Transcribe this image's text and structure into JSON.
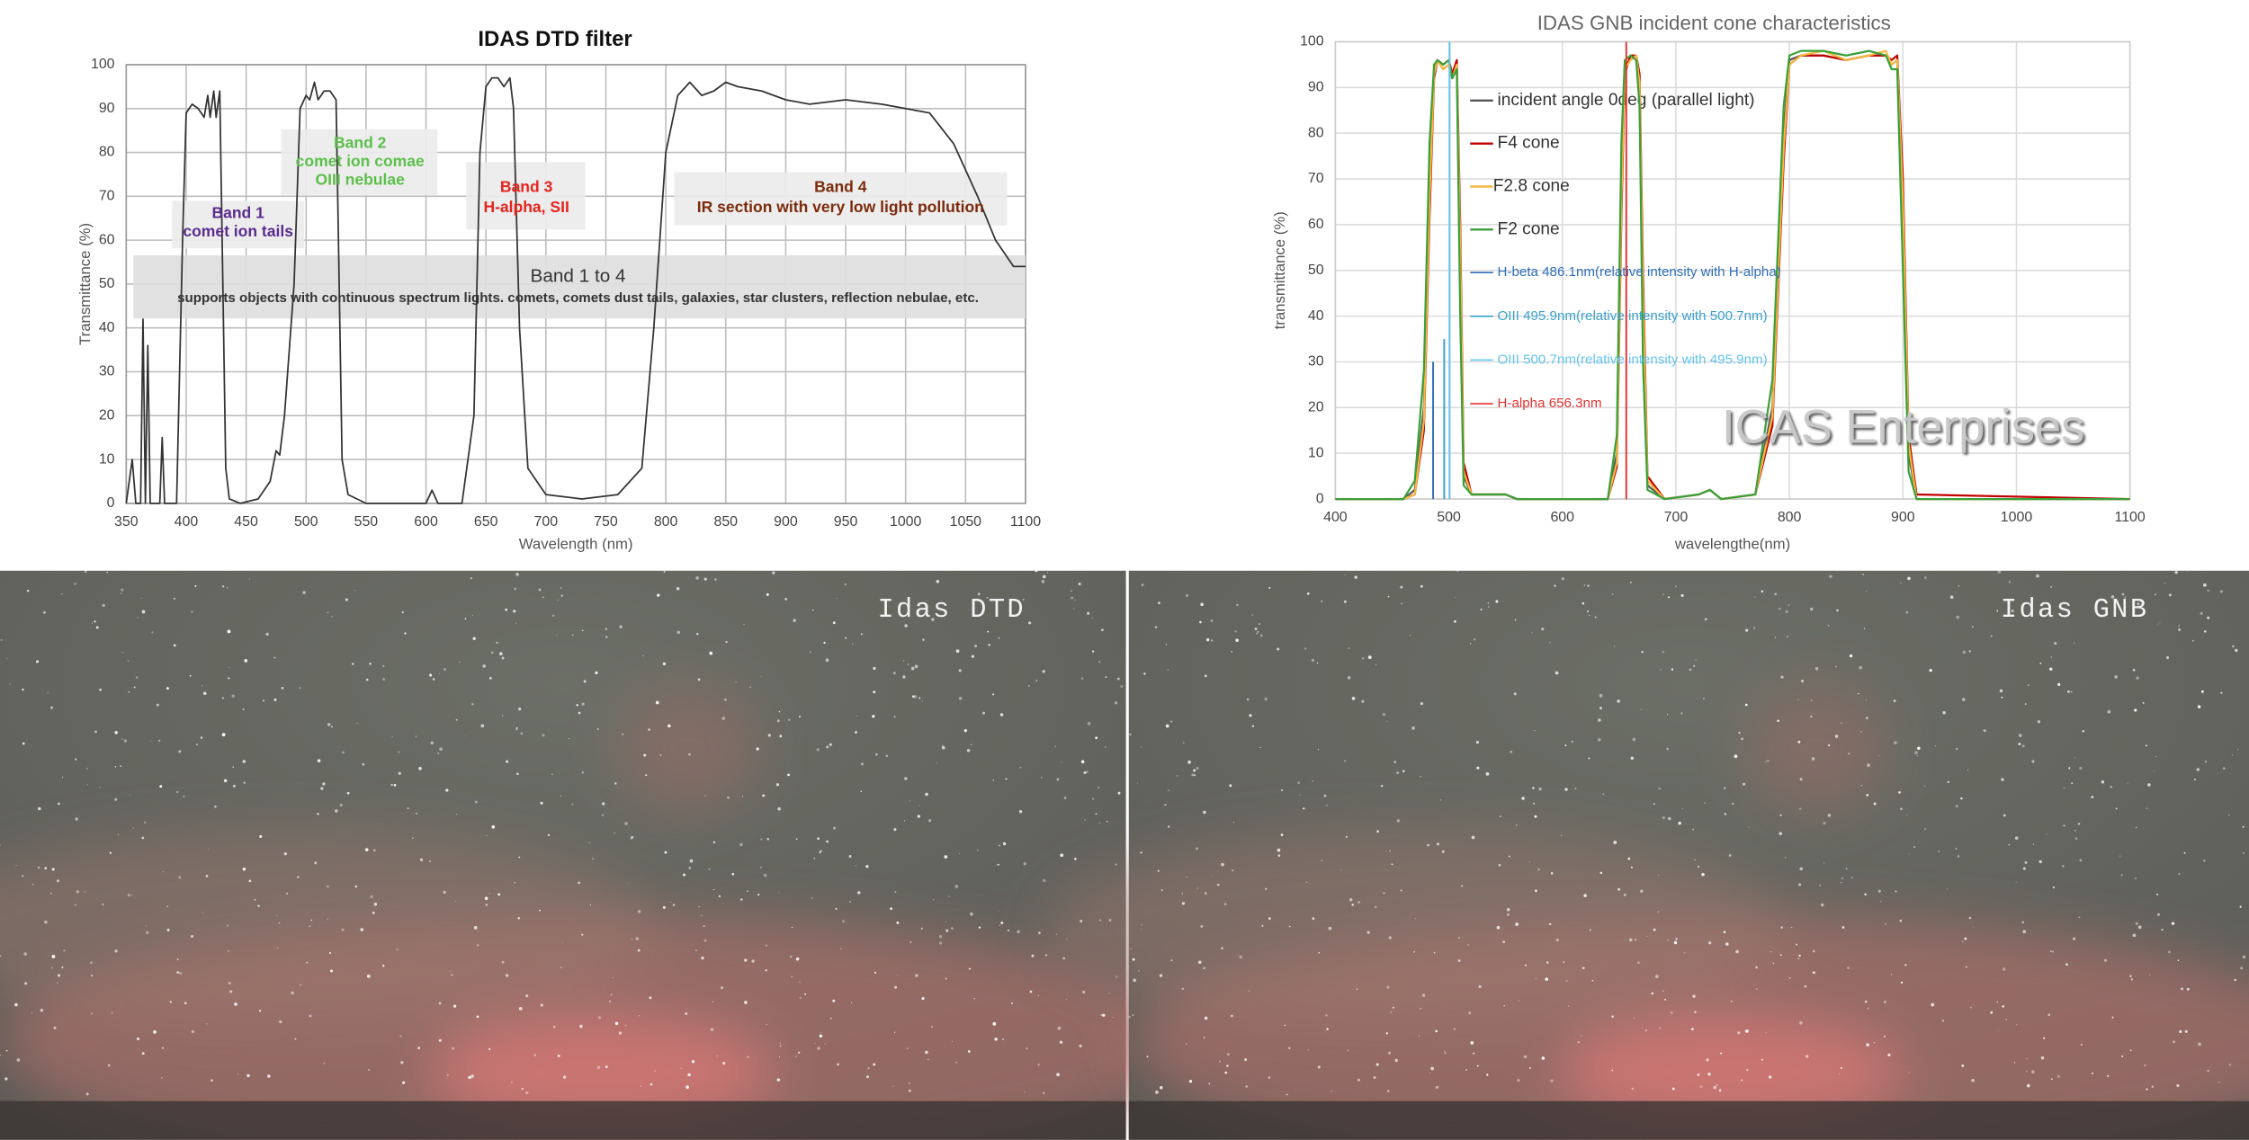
{
  "chart_data": [
    {
      "type": "line",
      "title": "IDAS DTD filter",
      "x_label": "Wavelength (nm)",
      "y_label": "Transmittance (%)",
      "x": [
        350,
        355,
        358,
        362,
        364,
        366,
        368,
        370,
        378,
        380,
        382,
        392,
        397,
        400,
        405,
        410,
        415,
        418,
        420,
        423,
        425,
        428,
        430,
        433,
        436,
        445,
        460,
        470,
        475,
        478,
        482,
        490,
        495,
        500,
        503,
        507,
        510,
        515,
        520,
        525,
        527,
        530,
        535,
        550,
        600,
        605,
        610,
        630,
        640,
        645,
        650,
        655,
        660,
        665,
        670,
        673,
        678,
        685,
        700,
        730,
        760,
        780,
        790,
        800,
        810,
        820,
        830,
        840,
        850,
        860,
        880,
        900,
        920,
        950,
        980,
        1000,
        1020,
        1040,
        1060,
        1075,
        1090,
        1100
      ],
      "values": [
        0,
        10,
        0,
        0,
        42,
        0,
        36,
        0,
        0,
        15,
        0,
        0,
        60,
        89,
        91,
        90,
        88,
        93,
        88,
        94,
        88,
        94,
        60,
        8,
        1,
        0,
        1,
        5,
        12,
        11,
        20,
        50,
        90,
        93,
        92,
        96,
        92,
        94,
        94,
        92,
        60,
        10,
        2,
        0,
        0,
        3,
        0,
        0,
        20,
        80,
        95,
        97,
        97,
        95,
        97,
        90,
        40,
        8,
        2,
        1,
        2,
        8,
        40,
        80,
        93,
        96,
        93,
        94,
        96,
        95,
        94,
        92,
        91,
        92,
        91,
        90,
        89,
        82,
        70,
        60,
        54,
        54
      ],
      "color": "#333333",
      "xlim": [
        350,
        1100
      ],
      "xticks": [
        350,
        400,
        450,
        500,
        550,
        600,
        650,
        700,
        750,
        800,
        850,
        900,
        950,
        1000,
        1050,
        1100
      ],
      "ylim": [
        0,
        100
      ],
      "yticks": [
        0,
        10,
        20,
        30,
        40,
        50,
        60,
        70,
        80,
        90,
        100
      ],
      "grid": true,
      "annotations": [
        {
          "lines": [
            "Band 1",
            "comet ion tails"
          ],
          "color": "#5b2c8f"
        },
        {
          "lines": [
            "Band 2",
            "comet ion comae",
            "OIII nebulae"
          ],
          "color": "#5cbf4c"
        },
        {
          "lines": [
            "Band 3",
            "H-alpha, SII"
          ],
          "color": "#e8231c"
        },
        {
          "lines": [
            "Band 4",
            "IR section with very low light pollution"
          ],
          "color": "#7b2a0a"
        },
        {
          "lines": [
            "Band 1 to 4",
            "supports objects with continuous spectrum lights. comets, comets dust tails, galaxies, star clusters, reflection nebulae, etc."
          ],
          "color": "#333333"
        }
      ]
    },
    {
      "type": "line",
      "title": "IDAS GNB incident cone characteristics",
      "x_label": "wavelengthe(nm)",
      "y_label": "transmittance (%)",
      "x": [
        400,
        460,
        470,
        478,
        483,
        487,
        490,
        495,
        500,
        503,
        507,
        510,
        513,
        520,
        550,
        560,
        640,
        648,
        652,
        655,
        660,
        665,
        668,
        671,
        675,
        690,
        720,
        730,
        740,
        770,
        785,
        795,
        800,
        810,
        830,
        850,
        870,
        885,
        890,
        895,
        900,
        905,
        912,
        1100
      ],
      "series": [
        {
          "name": "incident angle 0deg (parallel light)",
          "color": "#555555",
          "values": [
            0,
            0,
            2,
            20,
            70,
            94,
            96,
            94,
            95,
            92,
            95,
            50,
            5,
            1,
            1,
            0,
            0,
            10,
            70,
            95,
            96,
            97,
            90,
            40,
            3,
            0,
            1,
            2,
            0,
            1,
            20,
            80,
            96,
            97,
            97,
            96,
            97,
            97,
            95,
            96,
            60,
            10,
            0,
            0
          ]
        },
        {
          "name": "F4 cone",
          "color": "#c00000",
          "values": [
            0,
            0,
            1,
            15,
            62,
            92,
            96,
            95,
            96,
            93,
            96,
            60,
            8,
            1,
            1,
            0,
            0,
            7,
            62,
            93,
            97,
            97,
            93,
            50,
            5,
            0,
            1,
            2,
            0,
            1,
            16,
            74,
            95,
            97,
            97,
            96,
            97,
            97,
            96,
            97,
            70,
            14,
            1,
            0
          ]
        },
        {
          "name": "F2.8 cone",
          "color": "#f5b942",
          "values": [
            0,
            0,
            1,
            17,
            66,
            93,
            96,
            94,
            95,
            92,
            95,
            55,
            6,
            1,
            1,
            0,
            0,
            8,
            66,
            94,
            96,
            97,
            91,
            45,
            4,
            0,
            1,
            2,
            0,
            1,
            18,
            77,
            95,
            97,
            98,
            96,
            97,
            98,
            95,
            96,
            65,
            12,
            0,
            0
          ]
        },
        {
          "name": "F2 cone",
          "color": "#3aa03a",
          "values": [
            0,
            0,
            4,
            28,
            78,
            95,
            96,
            95,
            96,
            92,
            94,
            40,
            3,
            1,
            1,
            0,
            0,
            14,
            78,
            96,
            97,
            96,
            86,
            30,
            2,
            0,
            1,
            2,
            0,
            1,
            26,
            86,
            97,
            98,
            98,
            97,
            98,
            97,
            94,
            94,
            50,
            6,
            0,
            0
          ]
        }
      ],
      "lines": [
        {
          "name": "H-beta 486.1nm(relative intensity with H-alpha)",
          "color": "#2f6fb8",
          "x": 486.1,
          "value": 30
        },
        {
          "name": "OIII 495.9nm(relative intensity with 500.7nm)",
          "color": "#3aa0d0",
          "x": 495.9,
          "value": 35
        },
        {
          "name": "OIII 500.7nm(relative intensity with 495.9nm)",
          "color": "#63c5ef",
          "x": 500.7,
          "value": 100
        },
        {
          "name": "H-alpha 656.3nm",
          "color": "#e53030",
          "x": 656.3,
          "value": 100
        }
      ],
      "watermark": "ICAS Enterprises",
      "xlim": [
        400,
        1100
      ],
      "xticks": [
        400,
        500,
        600,
        700,
        800,
        900,
        1000,
        1100
      ],
      "ylim": [
        0,
        100
      ],
      "yticks": [
        0,
        10,
        20,
        30,
        40,
        50,
        60,
        70,
        80,
        90,
        100
      ],
      "grid": true
    }
  ],
  "photos": [
    {
      "label": "Idas DTD"
    },
    {
      "label": "Idas GNB"
    }
  ]
}
